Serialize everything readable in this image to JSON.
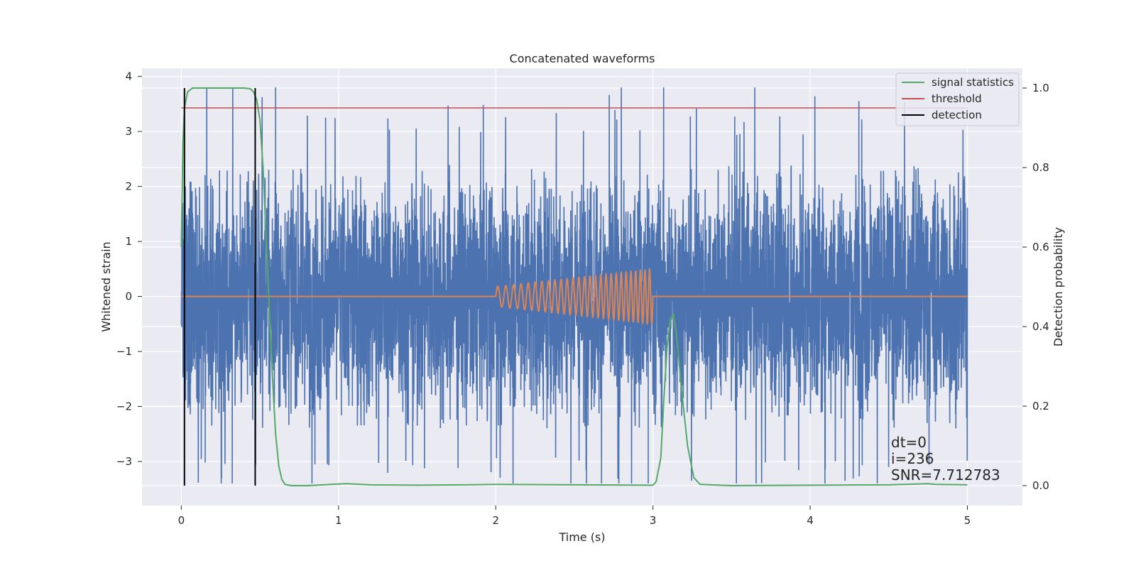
{
  "chart_data": {
    "type": "line",
    "title": "Concatenated waveforms",
    "xlabel": "Time (s)",
    "ylabel": "Whitened strain",
    "y2label": "Detection probability",
    "xlim": [
      -0.25,
      5.35
    ],
    "ylim": [
      -3.8,
      4.15
    ],
    "y2lim": [
      -0.05,
      1.05
    ],
    "xticks": [
      0,
      1,
      2,
      3,
      4,
      5
    ],
    "yticks": [
      -3,
      -2,
      -1,
      0,
      1,
      2,
      3,
      4
    ],
    "y2ticks": [
      0.0,
      0.2,
      0.4,
      0.6,
      0.8,
      1.0
    ],
    "xtick_labels": [
      "0",
      "1",
      "2",
      "3",
      "4",
      "5"
    ],
    "ytick_labels": [
      "−3",
      "−2",
      "−1",
      "0",
      "1",
      "2",
      "3",
      "4"
    ],
    "y2tick_labels": [
      "0.0",
      "0.2",
      "0.4",
      "0.6",
      "0.8",
      "1.0"
    ],
    "grid": true,
    "legend_position": "top-right",
    "colors": {
      "strain": "#4c72b0",
      "template": "#dd8452",
      "signal_statistics": "#55a868",
      "threshold": "#c44e52",
      "detection": "#000000",
      "background": "#eaeaf2"
    },
    "series": [
      {
        "key": "strain",
        "axis": "left",
        "description_values": {
          "x_range": [
            0,
            5
          ],
          "envelope_min": -3.4,
          "envelope_max": 3.8,
          "notable_peaks": [
            [
              0.6,
              3.8
            ],
            [
              4.31,
              3.55
            ],
            [
              0.85,
              -3.05
            ],
            [
              2.97,
              -3.4
            ]
          ]
        }
      },
      {
        "key": "template",
        "axis": "left",
        "x": [
          0,
          2.0,
          3.0,
          5
        ],
        "chirp": {
          "start": 2.0,
          "end": 3.0,
          "amp_start": 0.18,
          "amp_end": 0.5,
          "cycles": 27
        }
      },
      {
        "name": "signal statistics",
        "key": "signal_statistics",
        "axis": "right",
        "x": [
          0.0,
          0.01,
          0.02,
          0.04,
          0.07,
          0.1,
          0.2,
          0.3,
          0.4,
          0.44,
          0.46,
          0.48,
          0.5,
          0.52,
          0.54,
          0.56,
          0.58,
          0.6,
          0.62,
          0.64,
          0.66,
          0.7,
          0.8,
          1.0,
          1.05,
          1.2,
          1.5,
          1.8,
          2.0,
          2.5,
          3.0,
          3.02,
          3.05,
          3.07,
          3.09,
          3.11,
          3.13,
          3.15,
          3.18,
          3.22,
          3.26,
          3.3,
          3.5,
          4.0,
          4.5,
          4.75,
          4.8,
          5.0
        ],
        "y": [
          0.6,
          0.86,
          0.95,
          0.99,
          1.0,
          1.0,
          1.0,
          1.0,
          1.0,
          0.998,
          0.99,
          0.97,
          0.92,
          0.8,
          0.62,
          0.44,
          0.27,
          0.13,
          0.05,
          0.015,
          0.003,
          0.0,
          0.0,
          0.004,
          0.005,
          0.002,
          0.001,
          0.002,
          0.003,
          0.002,
          0.001,
          0.01,
          0.07,
          0.22,
          0.35,
          0.42,
          0.43,
          0.38,
          0.25,
          0.1,
          0.02,
          0.003,
          0.0,
          0.001,
          0.002,
          0.005,
          0.003,
          0.002
        ]
      },
      {
        "name": "threshold",
        "key": "threshold",
        "axis": "right",
        "x": [
          0,
          5
        ],
        "y": [
          0.95,
          0.95
        ]
      },
      {
        "name": "detection",
        "key": "detection",
        "axis": "right",
        "vlines": [
          0.02,
          0.47
        ],
        "y": [
          0.0,
          1.0
        ]
      }
    ],
    "legend": [
      "signal statistics",
      "threshold",
      "detection"
    ],
    "annotations": [
      "dt=0",
      "i=236",
      "SNR=7.712783"
    ]
  }
}
